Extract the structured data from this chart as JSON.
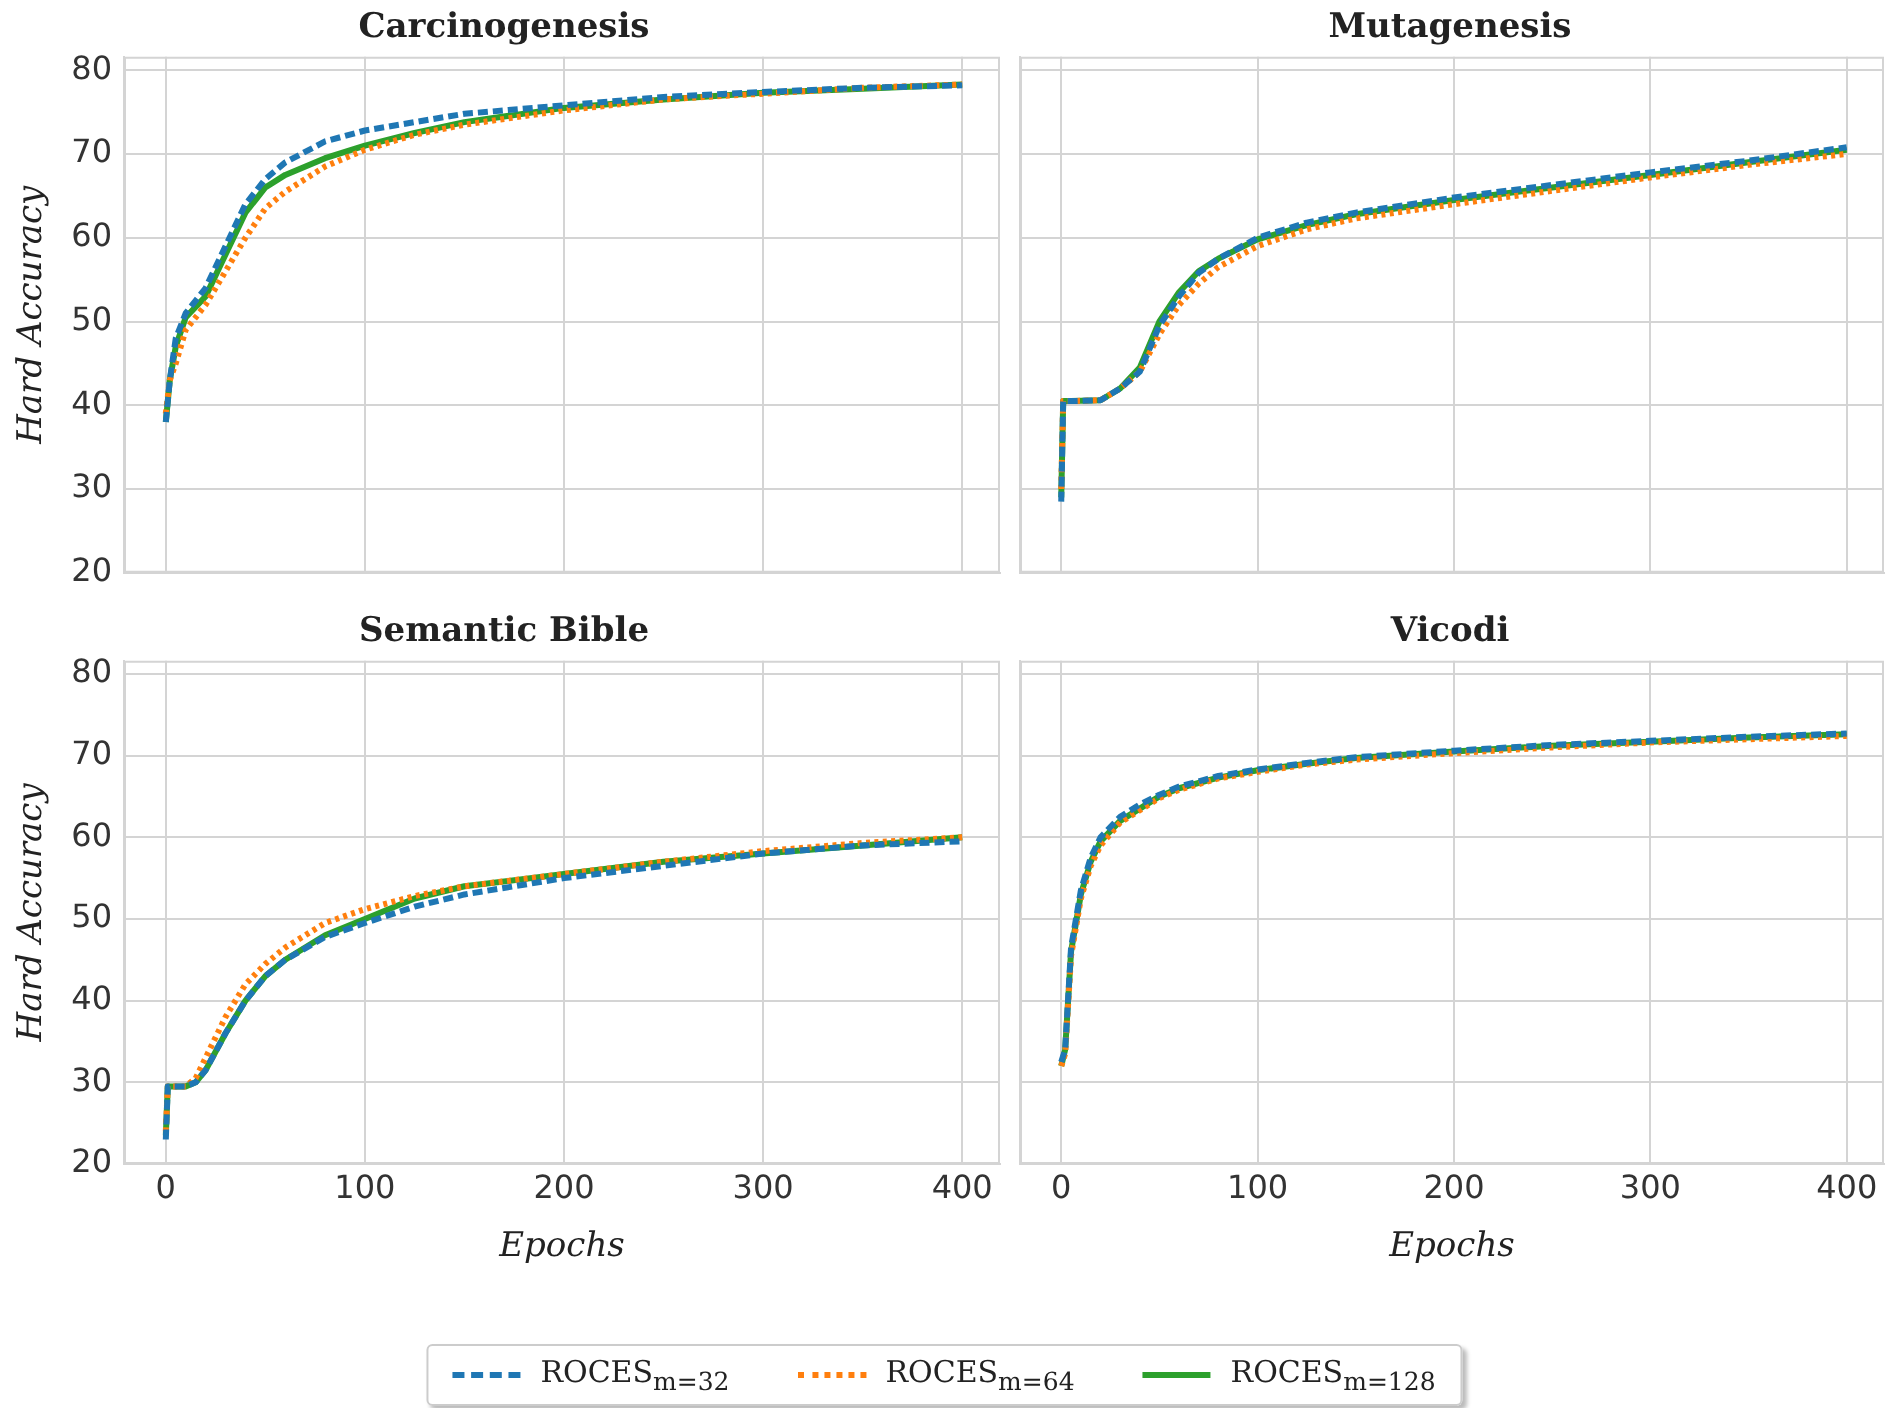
{
  "chart_data": [
    {
      "type": "line",
      "title": "Carcinogenesis",
      "ylabel": "Hard Accuracy",
      "xlim": [
        -21,
        419
      ],
      "ylim": [
        20,
        81.6
      ],
      "xticks": [
        0,
        100,
        200,
        300,
        400
      ],
      "yticks": [
        20,
        30,
        40,
        50,
        60,
        70,
        80
      ],
      "grid": true,
      "tick_labels": "y",
      "series": [
        {
          "color": "#1f77b4",
          "line_style": "dashed",
          "x": [
            0,
            2,
            5,
            10,
            20,
            30,
            40,
            50,
            60,
            80,
            100,
            125,
            150,
            200,
            250,
            300,
            350,
            400
          ],
          "values": [
            38,
            43,
            48,
            51,
            54,
            59,
            64,
            67,
            69,
            71.5,
            72.8,
            73.8,
            74.8,
            75.8,
            76.8,
            77.4,
            77.9,
            78.2
          ]
        },
        {
          "color": "#ff7f0e",
          "line_style": "dotted",
          "x": [
            0,
            2,
            5,
            10,
            20,
            30,
            40,
            50,
            60,
            80,
            100,
            125,
            150,
            200,
            250,
            300,
            350,
            400
          ],
          "values": [
            39,
            43,
            45,
            49,
            52,
            56,
            60,
            63.5,
            65.5,
            68.5,
            70.5,
            72.3,
            73.5,
            75.2,
            76.5,
            77.2,
            77.9,
            78.3
          ]
        },
        {
          "color": "#2ca02c",
          "line_style": "solid",
          "x": [
            0,
            2,
            5,
            10,
            20,
            30,
            40,
            50,
            60,
            80,
            100,
            125,
            150,
            200,
            250,
            300,
            350,
            400
          ],
          "values": [
            38,
            43,
            47,
            50.5,
            53,
            58,
            63,
            66,
            67.5,
            69.5,
            71,
            72.5,
            73.8,
            75.5,
            76.5,
            77.3,
            77.8,
            78.3
          ]
        }
      ]
    },
    {
      "type": "line",
      "title": "Mutagenesis",
      "xlim": [
        -21,
        419
      ],
      "ylim": [
        20,
        81.6
      ],
      "xticks": [
        0,
        100,
        200,
        300,
        400
      ],
      "yticks": [
        20,
        30,
        40,
        50,
        60,
        70,
        80
      ],
      "grid": true,
      "tick_labels": false,
      "series": [
        {
          "color": "#1f77b4",
          "line_style": "dashed",
          "x": [
            0,
            1,
            5,
            20,
            30,
            40,
            50,
            60,
            70,
            80,
            100,
            125,
            150,
            200,
            250,
            300,
            350,
            400
          ],
          "values": [
            28.5,
            40.5,
            40.5,
            40.6,
            42,
            44,
            49.5,
            53,
            55.8,
            57.5,
            60,
            61.8,
            63,
            64.8,
            66.3,
            67.8,
            69.2,
            70.8
          ]
        },
        {
          "color": "#ff7f0e",
          "line_style": "dotted",
          "x": [
            0,
            1,
            5,
            20,
            30,
            40,
            50,
            60,
            70,
            80,
            100,
            125,
            150,
            200,
            250,
            300,
            350,
            400
          ],
          "values": [
            30,
            40.5,
            40.5,
            40.6,
            42,
            44,
            48.5,
            52,
            54.5,
            56.5,
            59,
            61,
            62.3,
            64,
            65.6,
            67.2,
            68.7,
            70
          ]
        },
        {
          "color": "#2ca02c",
          "line_style": "solid",
          "x": [
            0,
            1,
            5,
            20,
            30,
            40,
            50,
            60,
            70,
            80,
            100,
            125,
            150,
            200,
            250,
            300,
            350,
            400
          ],
          "values": [
            29,
            40.5,
            40.5,
            40.6,
            42,
            44.5,
            50,
            53.5,
            56,
            57.5,
            59.8,
            61.5,
            62.8,
            64.5,
            66,
            67.5,
            69,
            70.5
          ]
        }
      ]
    },
    {
      "type": "line",
      "title": "Semantic Bible",
      "xlabel": "Epochs",
      "ylabel": "Hard Accuracy",
      "xlim": [
        -21,
        419
      ],
      "ylim": [
        20,
        81.6
      ],
      "xticks": [
        0,
        100,
        200,
        300,
        400
      ],
      "yticks": [
        20,
        30,
        40,
        50,
        60,
        70,
        80
      ],
      "grid": true,
      "series": [
        {
          "color": "#1f77b4",
          "line_style": "dashed",
          "x": [
            0,
            1,
            10,
            15,
            20,
            30,
            40,
            50,
            60,
            80,
            100,
            125,
            150,
            200,
            250,
            300,
            350,
            400
          ],
          "values": [
            23,
            29.5,
            29.5,
            30,
            31.5,
            36,
            40,
            43,
            45,
            47.8,
            49.5,
            51.5,
            53,
            55,
            56.5,
            58,
            59,
            59.5
          ]
        },
        {
          "color": "#ff7f0e",
          "line_style": "dotted",
          "x": [
            0,
            1,
            10,
            15,
            20,
            30,
            40,
            50,
            60,
            80,
            100,
            125,
            150,
            200,
            250,
            300,
            350,
            400
          ],
          "values": [
            24,
            29.5,
            29.5,
            30.5,
            33,
            38,
            42,
            44.5,
            46.5,
            49.5,
            51.2,
            52.8,
            54,
            55.5,
            57,
            58.3,
            59.3,
            60
          ]
        },
        {
          "color": "#2ca02c",
          "line_style": "solid",
          "x": [
            0,
            1,
            10,
            15,
            20,
            30,
            40,
            50,
            60,
            80,
            100,
            125,
            150,
            200,
            250,
            300,
            350,
            400
          ],
          "values": [
            23.5,
            29.5,
            29.5,
            30,
            31.5,
            36,
            40,
            43,
            45,
            48,
            50,
            52.5,
            54,
            55.5,
            57,
            58,
            59,
            60
          ]
        }
      ]
    },
    {
      "type": "line",
      "title": "Vicodi",
      "xlabel": "Epochs",
      "xlim": [
        -21,
        419
      ],
      "ylim": [
        20,
        81.6
      ],
      "xticks": [
        0,
        100,
        200,
        300,
        400
      ],
      "yticks": [
        20,
        30,
        40,
        50,
        60,
        70,
        80
      ],
      "grid": true,
      "legend": "bottom",
      "tick_labels": "x",
      "series": [
        {
          "name": "ROCES$_{m=32}$",
          "color": "#1f77b4",
          "line_style": "dashed",
          "x": [
            0,
            2,
            5,
            10,
            15,
            20,
            30,
            40,
            50,
            60,
            80,
            100,
            125,
            150,
            200,
            250,
            300,
            350,
            400
          ],
          "values": [
            32.5,
            34,
            46.5,
            53.5,
            57.5,
            60,
            62.5,
            64,
            65.2,
            66.2,
            67.5,
            68.3,
            69.1,
            69.8,
            70.6,
            71.3,
            71.8,
            72.3,
            72.7
          ]
        },
        {
          "name": "ROCES$_{m=64}$",
          "color": "#ff7f0e",
          "line_style": "dotted",
          "x": [
            0,
            2,
            5,
            10,
            15,
            20,
            30,
            40,
            50,
            60,
            80,
            100,
            125,
            150,
            200,
            250,
            300,
            350,
            400
          ],
          "values": [
            32,
            33.5,
            45.5,
            52.5,
            56.5,
            59,
            61.8,
            63.3,
            64.8,
            65.8,
            67.2,
            68,
            68.9,
            69.5,
            70.3,
            71,
            71.6,
            72,
            72.4
          ]
        },
        {
          "name": "ROCES$_{m=128}$",
          "color": "#2ca02c",
          "line_style": "solid",
          "x": [
            0,
            2,
            5,
            10,
            15,
            20,
            30,
            40,
            50,
            60,
            80,
            100,
            125,
            150,
            200,
            250,
            300,
            350,
            400
          ],
          "values": [
            32,
            34,
            46,
            53,
            57,
            59.5,
            62,
            63.5,
            65,
            66,
            67.3,
            68.2,
            69,
            69.7,
            70.5,
            71.2,
            71.7,
            72.2,
            72.6
          ]
        }
      ]
    }
  ]
}
